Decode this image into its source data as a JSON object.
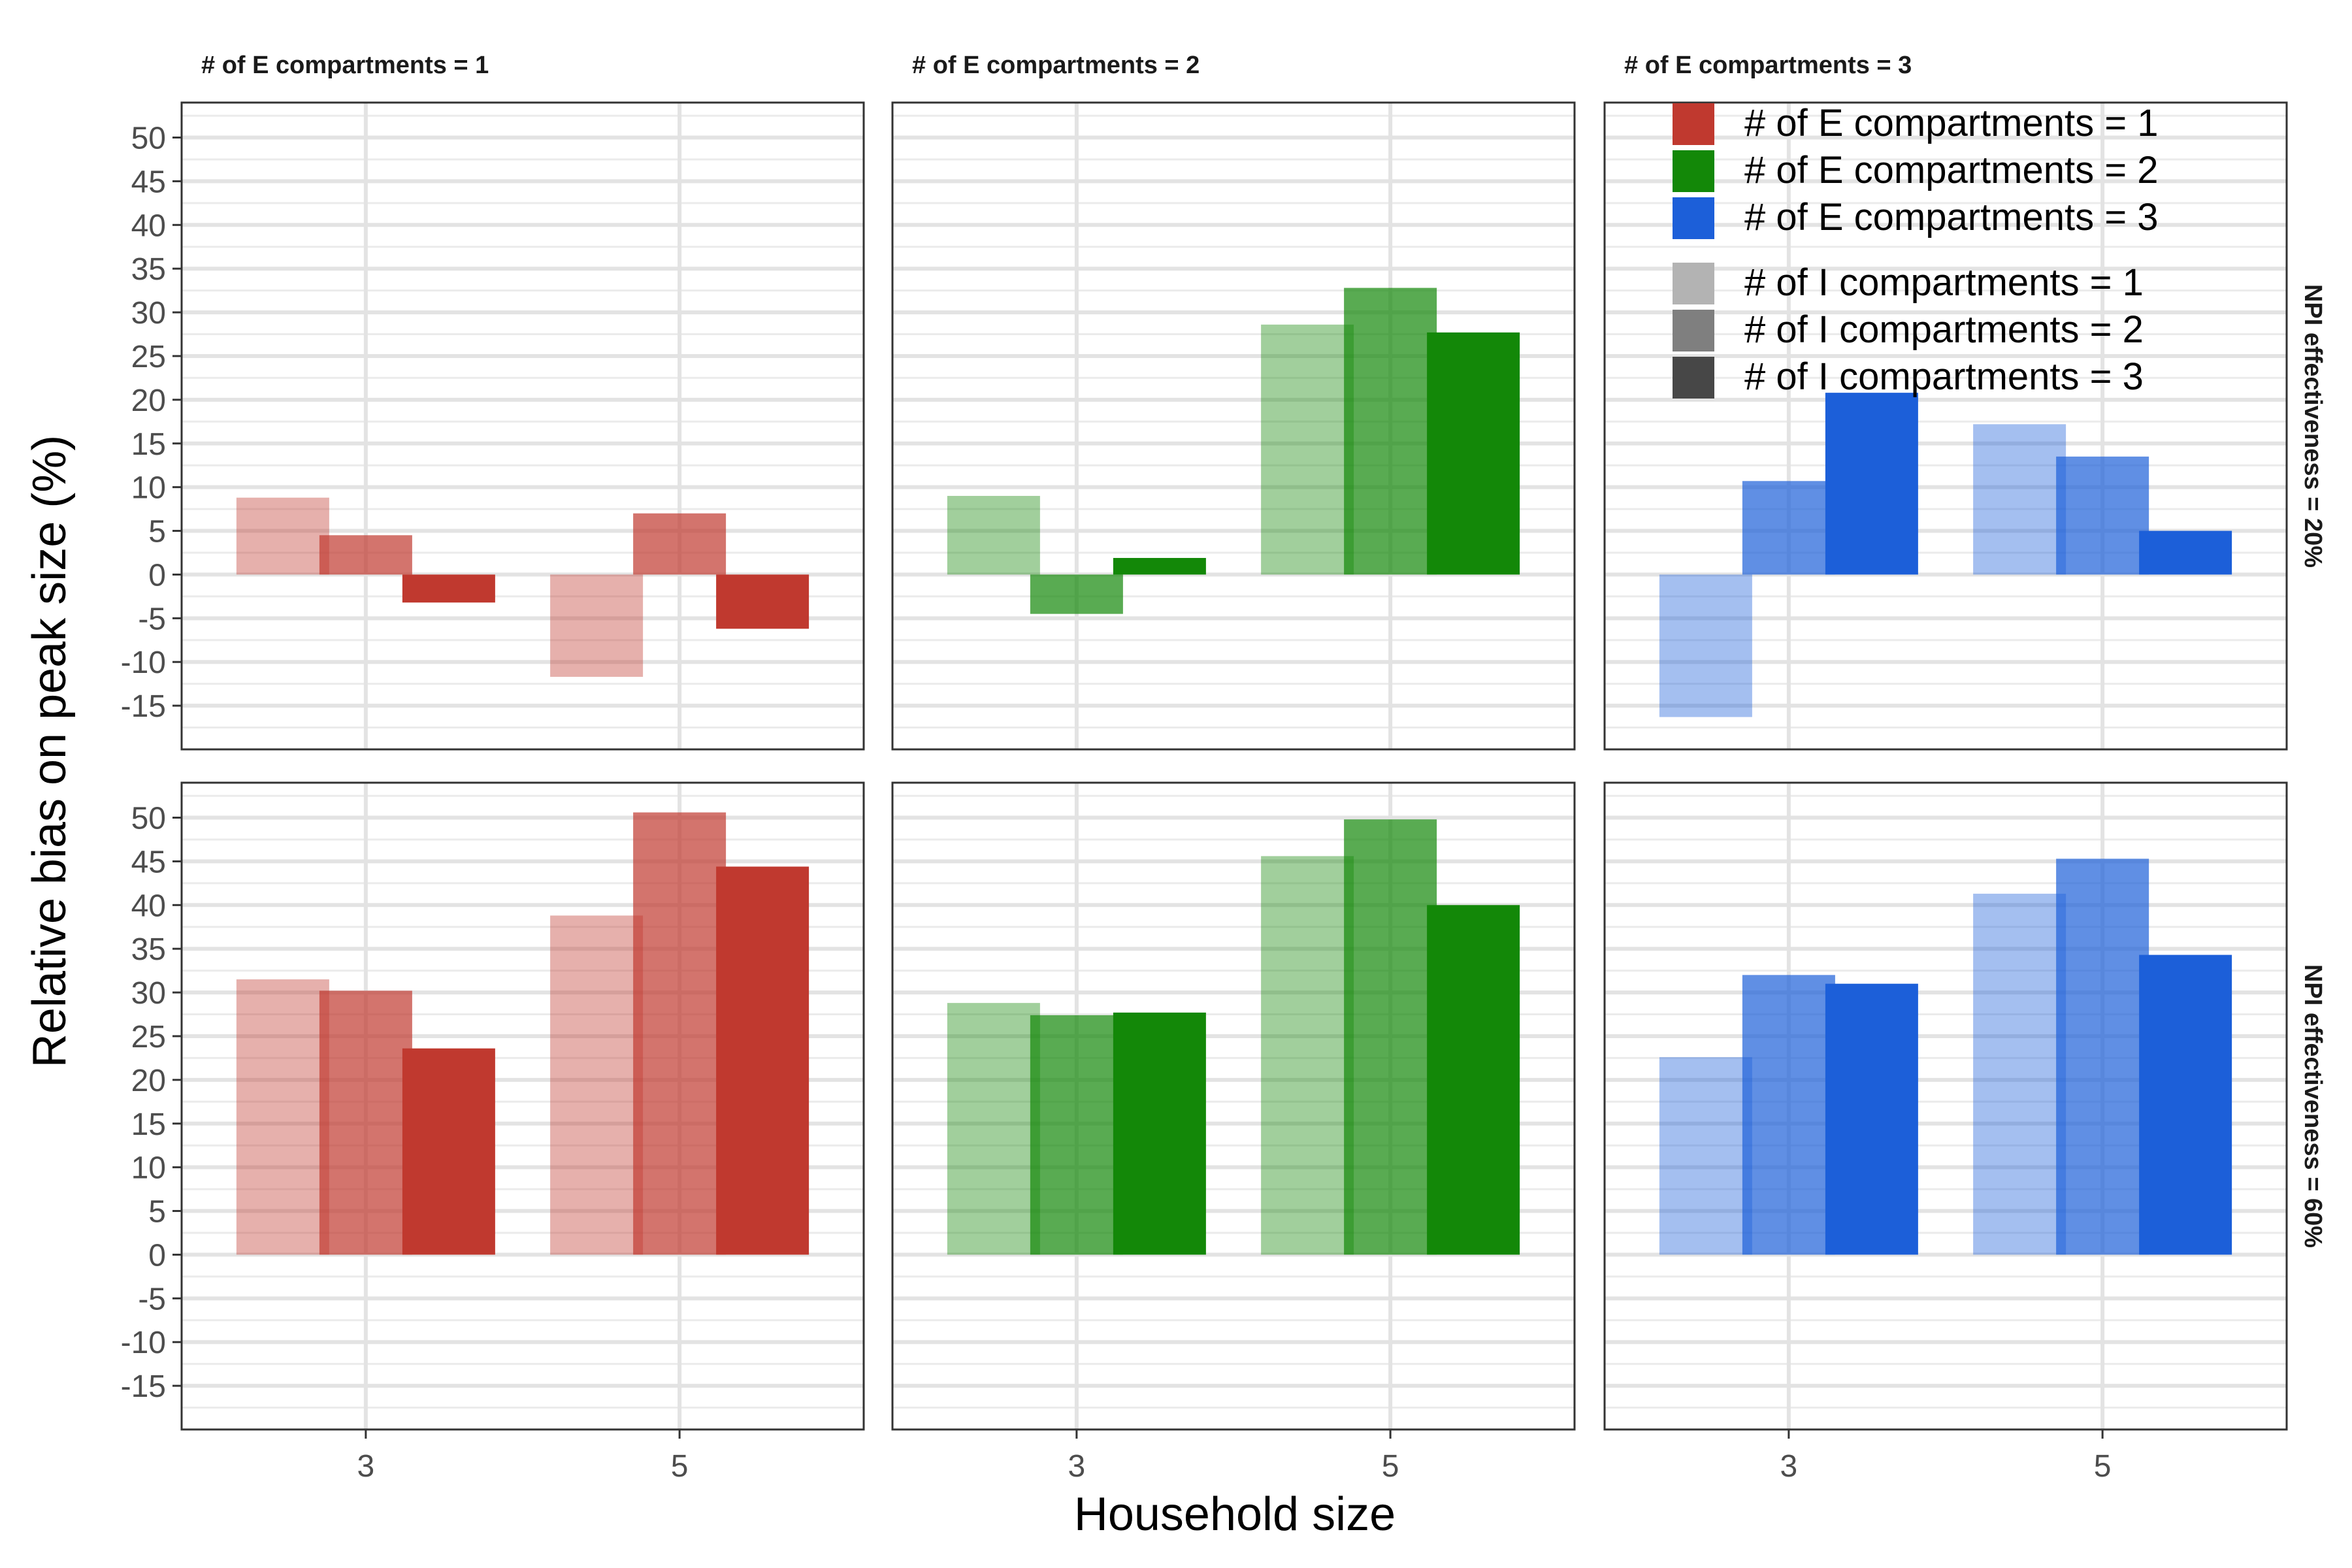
{
  "chart_data": {
    "type": "bar",
    "xlabel": "Household size",
    "ylabel": "Relative bias on peak size (%)",
    "categories": [
      "3",
      "5"
    ],
    "ylim": [
      -20,
      54
    ],
    "yticks": [
      -15,
      -10,
      -5,
      0,
      5,
      10,
      15,
      20,
      25,
      30,
      35,
      40,
      45,
      50
    ],
    "ytick_labels": [
      "-15",
      "-10",
      "-5",
      "0",
      "5",
      "10",
      "15",
      "20",
      "25",
      "30",
      "35",
      "40",
      "45",
      "50"
    ],
    "grid": true,
    "legend_position": "top-right",
    "column_labels": [
      "# of E compartments = 1",
      "# of E compartments = 2",
      "# of E compartments = 3"
    ],
    "row_labels": [
      "NPI effectiveness = 20%",
      "NPI effectiveness = 60%"
    ],
    "colors": {
      "e1": "#c0392f",
      "e2": "#138808",
      "e3": "#1c5fd9"
    },
    "opacities": [
      0.4,
      0.7,
      1.0
    ],
    "legend": {
      "color_entries": [
        "# of E compartments = 1",
        "# of E compartments = 2",
        "# of E compartments = 3"
      ],
      "alpha_entries": [
        "# of I compartments = 1",
        "# of I compartments = 2",
        "# of I compartments = 3"
      ]
    },
    "panels": [
      {
        "row": 0,
        "col": 0,
        "color": "e1",
        "series": [
          {
            "name": "# of I compartments = 1",
            "values": [
              8.8,
              -11.7
            ]
          },
          {
            "name": "# of I compartments = 2",
            "values": [
              4.5,
              7.0
            ]
          },
          {
            "name": "# of I compartments = 3",
            "values": [
              -3.2,
              -6.2
            ]
          }
        ]
      },
      {
        "row": 0,
        "col": 1,
        "color": "e2",
        "series": [
          {
            "name": "# of I compartments = 1",
            "values": [
              9.0,
              28.6
            ]
          },
          {
            "name": "# of I compartments = 2",
            "values": [
              -4.5,
              32.8
            ]
          },
          {
            "name": "# of I compartments = 3",
            "values": [
              1.9,
              27.7
            ]
          }
        ]
      },
      {
        "row": 0,
        "col": 2,
        "color": "e3",
        "series": [
          {
            "name": "# of I compartments = 1",
            "values": [
              -16.3,
              17.2
            ]
          },
          {
            "name": "# of I compartments = 2",
            "values": [
              10.7,
              13.5
            ]
          },
          {
            "name": "# of I compartments = 3",
            "values": [
              20.8,
              5.0
            ]
          }
        ]
      },
      {
        "row": 1,
        "col": 0,
        "color": "e1",
        "series": [
          {
            "name": "# of I compartments = 1",
            "values": [
              31.5,
              38.8
            ]
          },
          {
            "name": "# of I compartments = 2",
            "values": [
              30.2,
              50.6
            ]
          },
          {
            "name": "# of I compartments = 3",
            "values": [
              23.6,
              44.4
            ]
          }
        ]
      },
      {
        "row": 1,
        "col": 1,
        "color": "e2",
        "series": [
          {
            "name": "# of I compartments = 1",
            "values": [
              28.8,
              45.6
            ]
          },
          {
            "name": "# of I compartments = 2",
            "values": [
              27.4,
              49.8
            ]
          },
          {
            "name": "# of I compartments = 3",
            "values": [
              27.7,
              40.0
            ]
          }
        ]
      },
      {
        "row": 1,
        "col": 2,
        "color": "e3",
        "series": [
          {
            "name": "# of I compartments = 1",
            "values": [
              22.6,
              41.3
            ]
          },
          {
            "name": "# of I compartments = 2",
            "values": [
              32.0,
              45.3
            ]
          },
          {
            "name": "# of I compartments = 3",
            "values": [
              31.0,
              34.3
            ]
          }
        ]
      }
    ]
  }
}
